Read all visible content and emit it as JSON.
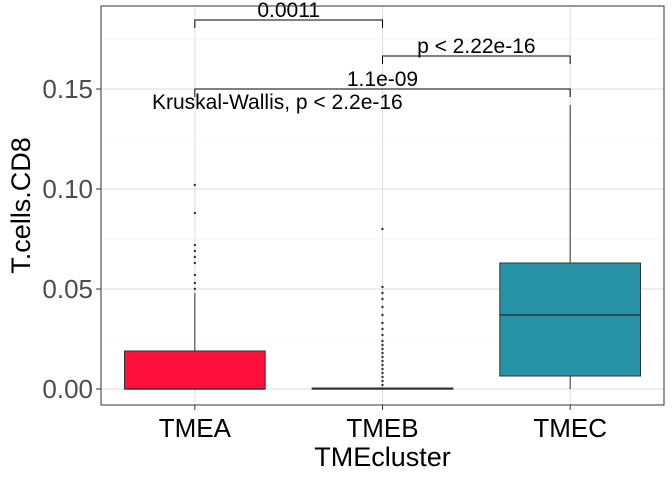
{
  "chart_data": {
    "type": "box",
    "xlabel": "TMEcluster",
    "ylabel": "T.cells.CD8",
    "ylim": [
      -0.008,
      0.1915
    ],
    "yticks": [
      0.0,
      0.05,
      0.1,
      0.15
    ],
    "ytick_labels": [
      "0.00",
      "0.05",
      "0.10",
      "0.15"
    ],
    "grid": true,
    "categories": [
      "TMEA",
      "TMEB",
      "TMEC"
    ],
    "series": [
      {
        "category": "TMEA",
        "color": "#ff0f3c",
        "q1": 0.0,
        "median": 0.0,
        "q3": 0.019,
        "whisker_low": 0.0,
        "whisker_high": 0.048,
        "outliers": [
          0.05,
          0.053,
          0.057,
          0.063,
          0.066,
          0.069,
          0.072,
          0.088,
          0.102
        ]
      },
      {
        "category": "TMEB",
        "color": "#ff0f3c",
        "q1": 0.0,
        "median": 0.0,
        "q3": 0.0005,
        "whisker_low": 0.0,
        "whisker_high": 0.0005,
        "outliers": [
          0.002,
          0.004,
          0.006,
          0.008,
          0.01,
          0.012,
          0.014,
          0.016,
          0.018,
          0.02,
          0.022,
          0.024,
          0.027,
          0.03,
          0.033,
          0.037,
          0.041,
          0.045,
          0.048,
          0.051,
          0.08
        ]
      },
      {
        "category": "TMEC",
        "color": "#2593a5",
        "q1": 0.0065,
        "median": 0.037,
        "q3": 0.063,
        "whisker_low": 0.0,
        "whisker_high": 0.142,
        "outliers": []
      }
    ],
    "annotations": {
      "kruskal": "Kruskal-Wallis, p < 2.2e-16",
      "comparisons": [
        {
          "from": "TMEA",
          "to": "TMEB",
          "y": 0.1845,
          "tip": 0.1805,
          "label": "0.0011"
        },
        {
          "from": "TMEB",
          "to": "TMEC",
          "y": 0.1665,
          "tip": 0.1625,
          "label": "p < 2.22e-16"
        },
        {
          "from": "TMEA",
          "to": "TMEC",
          "y": 0.15,
          "tip": 0.146,
          "label": "1.1e-09"
        }
      ]
    }
  }
}
